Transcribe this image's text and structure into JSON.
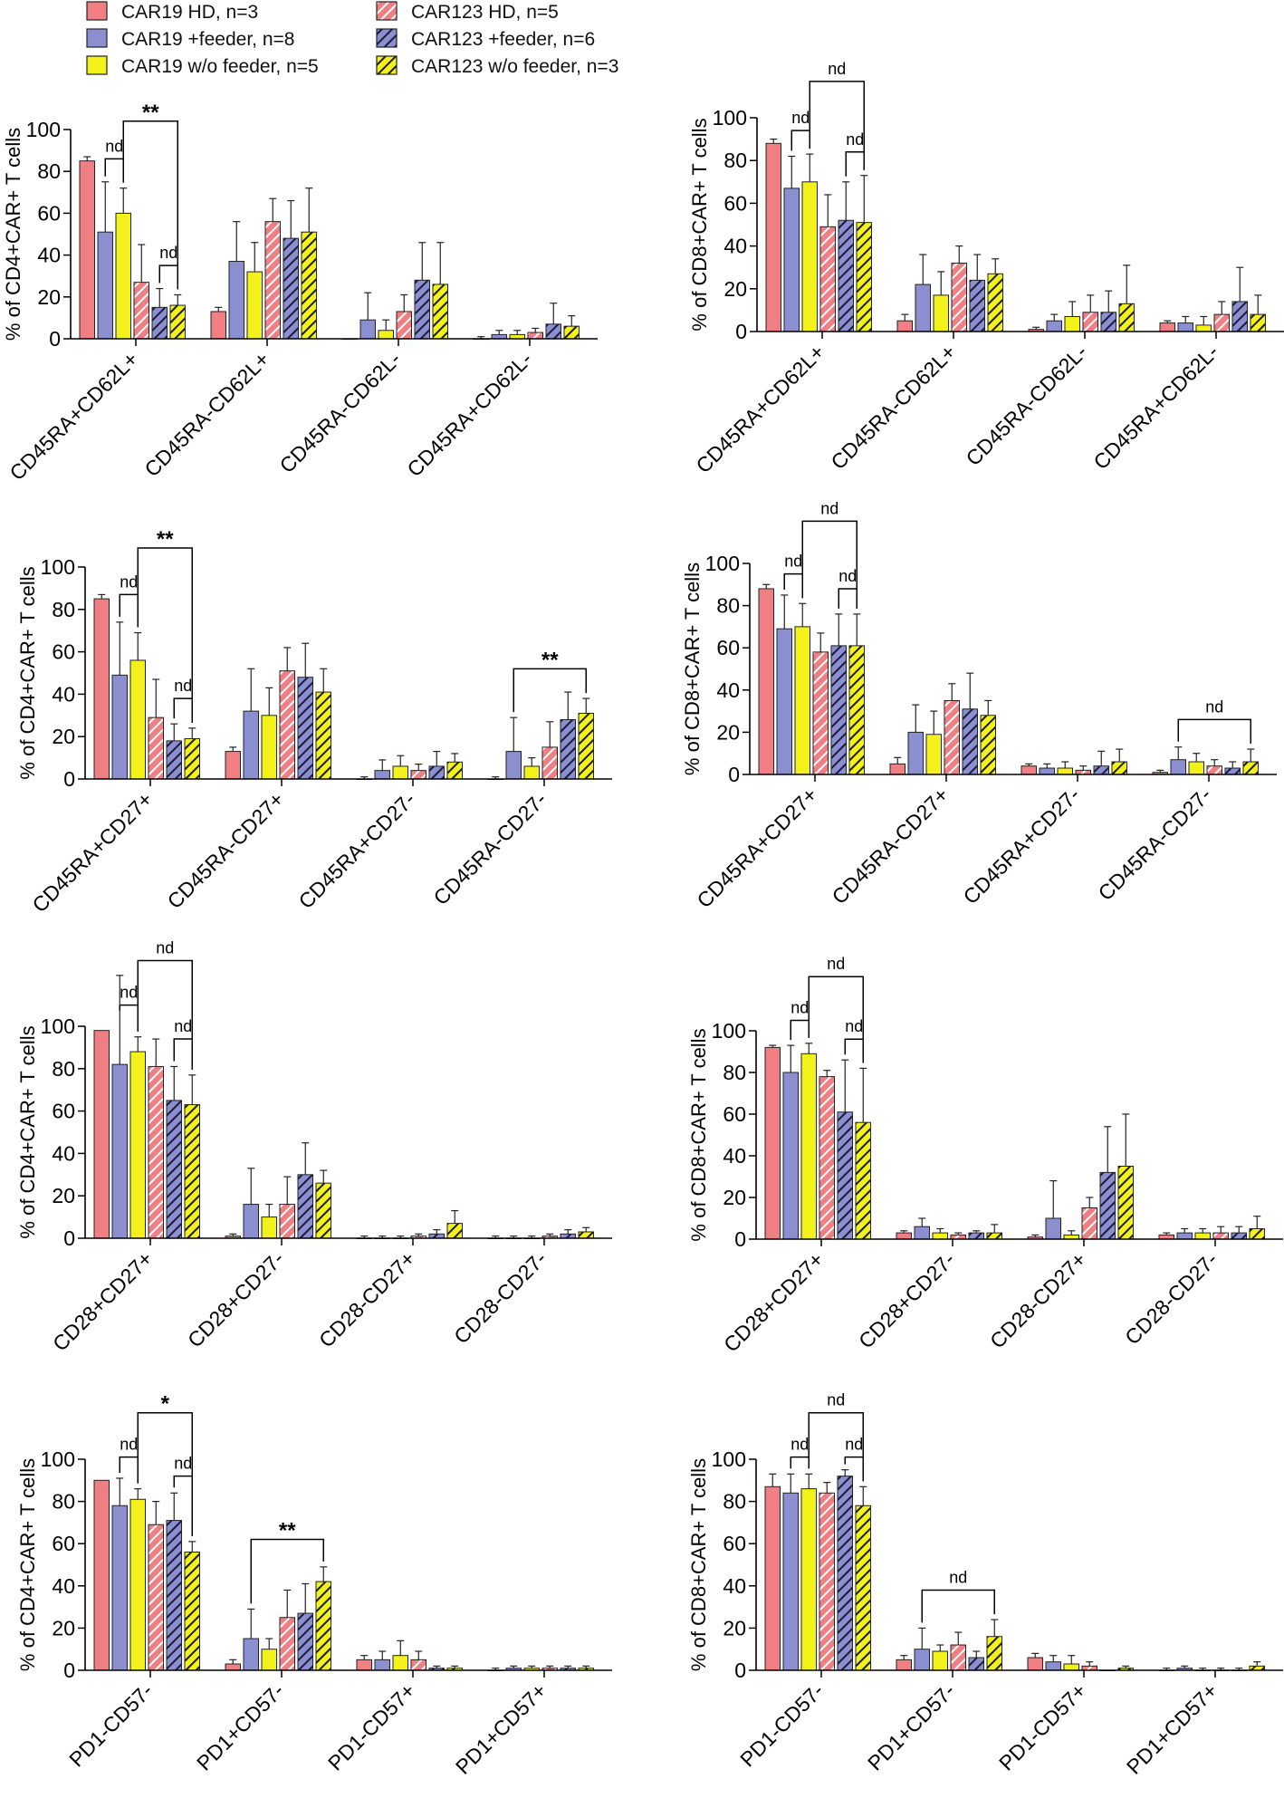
{
  "legend": [
    {
      "label": "CAR19 HD, n=3",
      "hatched": false,
      "color": "#f07f84"
    },
    {
      "label": "CAR19 +feeder, n=8",
      "hatched": false,
      "color": "#8b8fcf"
    },
    {
      "label": "CAR19 w/o feeder, n=5",
      "hatched": false,
      "color": "#f2f21a"
    },
    {
      "label": "CAR123 HD, n=5",
      "hatched": true,
      "color": "#f07f84"
    },
    {
      "label": "CAR123 +feeder, n=6",
      "hatched": true,
      "color": "#8b8fcf"
    },
    {
      "label": "CAR123 w/o feeder, n=3",
      "hatched": true,
      "color": "#f2f21a"
    }
  ],
  "chart_data": [
    {
      "type": "bar",
      "title": "",
      "ylabel": "% of CD4+CAR+ T cells",
      "ylim": [
        0,
        100
      ],
      "yticks": [
        0,
        20,
        40,
        60,
        80,
        100
      ],
      "categories": [
        "CD45RA+CD62L+",
        "CD45RA-CD62L+",
        "CD45RA-CD62L-",
        "CD45RA+CD62L-"
      ],
      "values": [
        [
          85,
          51,
          60,
          27,
          15,
          16
        ],
        [
          13,
          37,
          32,
          56,
          48,
          51
        ],
        [
          0,
          9,
          4,
          13,
          28,
          26
        ],
        [
          0,
          2,
          2,
          3,
          7,
          6
        ]
      ],
      "errors": [
        [
          2,
          24,
          12,
          18,
          9,
          5
        ],
        [
          2,
          19,
          14,
          11,
          18,
          21
        ],
        [
          0,
          13,
          5,
          8,
          18,
          20
        ],
        [
          1,
          2,
          2,
          2,
          10,
          5
        ]
      ],
      "annotations": [
        {
          "text": "nd",
          "from": [
            0,
            1
          ],
          "to": [
            0,
            2
          ],
          "y": 86
        },
        {
          "text": "**",
          "from": [
            0,
            2
          ],
          "to": [
            0,
            5
          ],
          "y": 104
        },
        {
          "text": "nd",
          "from": [
            0,
            4
          ],
          "to": [
            0,
            5
          ],
          "y": 35
        }
      ]
    },
    {
      "type": "bar",
      "title": "",
      "ylabel": "% of CD8+CAR+ T cells",
      "ylim": [
        0,
        100
      ],
      "yticks": [
        0,
        20,
        40,
        60,
        80,
        100
      ],
      "categories": [
        "CD45RA+CD62L+",
        "CD45RA-CD62L+",
        "CD45RA-CD62L-",
        "CD45RA+CD62L-"
      ],
      "values": [
        [
          88,
          67,
          70,
          49,
          52,
          51
        ],
        [
          5,
          22,
          17,
          32,
          24,
          27
        ],
        [
          1,
          5,
          7,
          9,
          9,
          13
        ],
        [
          4,
          4,
          3,
          8,
          14,
          8
        ]
      ],
      "errors": [
        [
          2,
          15,
          13,
          15,
          18,
          22
        ],
        [
          3,
          14,
          11,
          8,
          12,
          7
        ],
        [
          1,
          3,
          7,
          8,
          10,
          18
        ],
        [
          1,
          3,
          4,
          6,
          16,
          9
        ]
      ],
      "annotations": [
        {
          "text": "nd",
          "from": [
            0,
            1
          ],
          "to": [
            0,
            2
          ],
          "y": 94
        },
        {
          "text": "nd",
          "from": [
            0,
            2
          ],
          "to": [
            0,
            5
          ],
          "y": 117
        },
        {
          "text": "nd",
          "from": [
            0,
            4
          ],
          "to": [
            0,
            5
          ],
          "y": 84
        }
      ]
    },
    {
      "type": "bar",
      "title": "",
      "ylabel": "% of CD4+CAR+ T cells",
      "ylim": [
        0,
        100
      ],
      "yticks": [
        0,
        20,
        40,
        60,
        80,
        100
      ],
      "categories": [
        "CD45RA+CD27+",
        "CD45RA-CD27+",
        "CD45RA+CD27-",
        "CD45RA-CD27-"
      ],
      "values": [
        [
          85,
          49,
          56,
          29,
          18,
          19
        ],
        [
          13,
          32,
          30,
          51,
          48,
          41
        ],
        [
          0,
          4,
          6,
          4,
          6,
          8
        ],
        [
          0,
          13,
          6,
          15,
          28,
          31
        ]
      ],
      "errors": [
        [
          2,
          25,
          13,
          18,
          8,
          5
        ],
        [
          2,
          20,
          13,
          11,
          16,
          11
        ],
        [
          1,
          5,
          5,
          3,
          7,
          4
        ],
        [
          1,
          16,
          4,
          12,
          13,
          7
        ]
      ],
      "annotations": [
        {
          "text": "nd",
          "from": [
            0,
            1
          ],
          "to": [
            0,
            2
          ],
          "y": 87
        },
        {
          "text": "**",
          "from": [
            0,
            2
          ],
          "to": [
            0,
            5
          ],
          "y": 109
        },
        {
          "text": "nd",
          "from": [
            0,
            4
          ],
          "to": [
            0,
            5
          ],
          "y": 38
        },
        {
          "text": "**",
          "from": [
            3,
            1
          ],
          "to": [
            3,
            5
          ],
          "y": 52
        }
      ]
    },
    {
      "type": "bar",
      "title": "",
      "ylabel": "% of CD8+CAR+ T cells",
      "ylim": [
        0,
        100
      ],
      "yticks": [
        0,
        20,
        40,
        60,
        80,
        100
      ],
      "categories": [
        "CD45RA+CD27+",
        "CD45RA-CD27+",
        "CD45RA+CD27-",
        "CD45RA-CD27-"
      ],
      "values": [
        [
          88,
          69,
          70,
          58,
          61,
          61
        ],
        [
          5,
          20,
          19,
          35,
          31,
          28
        ],
        [
          4,
          3,
          3,
          2,
          4,
          6
        ],
        [
          1,
          7,
          6,
          4,
          3,
          6
        ]
      ],
      "errors": [
        [
          2,
          16,
          11,
          9,
          15,
          15
        ],
        [
          3,
          13,
          11,
          8,
          17,
          7
        ],
        [
          1,
          2,
          3,
          2,
          7,
          6
        ],
        [
          1,
          6,
          4,
          3,
          3,
          6
        ]
      ],
      "annotations": [
        {
          "text": "nd",
          "from": [
            0,
            1
          ],
          "to": [
            0,
            2
          ],
          "y": 95
        },
        {
          "text": "nd",
          "from": [
            0,
            2
          ],
          "to": [
            0,
            5
          ],
          "y": 120
        },
        {
          "text": "nd",
          "from": [
            0,
            4
          ],
          "to": [
            0,
            5
          ],
          "y": 88
        },
        {
          "text": "nd",
          "from": [
            3,
            1
          ],
          "to": [
            3,
            5
          ],
          "y": 26
        }
      ]
    },
    {
      "type": "bar",
      "title": "",
      "ylabel": "% of CD4+CAR+ T cells",
      "ylim": [
        0,
        100
      ],
      "yticks": [
        0,
        20,
        40,
        60,
        80,
        100
      ],
      "categories": [
        "CD28+CD27+",
        "CD28+CD27-",
        "CD28-CD27+",
        "CD28-CD27-"
      ],
      "values": [
        [
          98,
          82,
          88,
          81,
          65,
          63
        ],
        [
          1,
          16,
          10,
          16,
          30,
          26
        ],
        [
          0,
          0,
          0,
          1,
          2,
          7
        ],
        [
          0,
          0,
          0,
          1,
          2,
          3
        ]
      ],
      "errors": [
        [
          0,
          42,
          7,
          13,
          16,
          14
        ],
        [
          1,
          17,
          6,
          13,
          15,
          6
        ],
        [
          1,
          1,
          1,
          1,
          2,
          6
        ],
        [
          1,
          1,
          1,
          1,
          2,
          2
        ]
      ],
      "annotations": [
        {
          "text": "nd",
          "from": [
            0,
            1
          ],
          "to": [
            0,
            2
          ],
          "y": 110
        },
        {
          "text": "nd",
          "from": [
            0,
            2
          ],
          "to": [
            0,
            5
          ],
          "y": 131
        },
        {
          "text": "nd",
          "from": [
            0,
            4
          ],
          "to": [
            0,
            5
          ],
          "y": 94
        }
      ]
    },
    {
      "type": "bar",
      "title": "",
      "ylabel": "% of CD8+CAR+ T cells",
      "ylim": [
        0,
        100
      ],
      "yticks": [
        0,
        20,
        40,
        60,
        80,
        100
      ],
      "categories": [
        "CD28+CD27+",
        "CD28+CD27-",
        "CD28-CD27+",
        "CD28-CD27-"
      ],
      "values": [
        [
          92,
          80,
          89,
          78,
          61,
          56
        ],
        [
          3,
          6,
          3,
          2,
          3,
          3
        ],
        [
          1,
          10,
          2,
          15,
          32,
          35
        ],
        [
          2,
          3,
          3,
          3,
          3,
          5
        ]
      ],
      "errors": [
        [
          1,
          13,
          5,
          3,
          25,
          26
        ],
        [
          1,
          4,
          2,
          1,
          1,
          4
        ],
        [
          1,
          18,
          2,
          5,
          22,
          25
        ],
        [
          1,
          2,
          2,
          3,
          3,
          6
        ]
      ],
      "annotations": [
        {
          "text": "nd",
          "from": [
            0,
            1
          ],
          "to": [
            0,
            2
          ],
          "y": 105
        },
        {
          "text": "nd",
          "from": [
            0,
            2
          ],
          "to": [
            0,
            5
          ],
          "y": 126
        },
        {
          "text": "nd",
          "from": [
            0,
            4
          ],
          "to": [
            0,
            5
          ],
          "y": 96
        }
      ]
    },
    {
      "type": "bar",
      "title": "",
      "ylabel": "% of CD4+CAR+ T cells",
      "ylim": [
        0,
        100
      ],
      "yticks": [
        0,
        20,
        40,
        60,
        80,
        100
      ],
      "categories": [
        "PD1-CD57-",
        "PD1+CD57-",
        "PD1-CD57+",
        "PD1+CD57+"
      ],
      "values": [
        [
          90,
          78,
          81,
          69,
          71,
          56
        ],
        [
          3,
          15,
          10,
          25,
          27,
          42
        ],
        [
          5,
          5,
          7,
          5,
          1,
          1
        ],
        [
          0,
          1,
          1,
          1,
          1,
          1
        ]
      ],
      "errors": [
        [
          0,
          13,
          5,
          11,
          13,
          5
        ],
        [
          2,
          14,
          5,
          13,
          14,
          7
        ],
        [
          2,
          4,
          7,
          4,
          1,
          1
        ],
        [
          1,
          1,
          1,
          1,
          1,
          1
        ]
      ],
      "annotations": [
        {
          "text": "nd",
          "from": [
            0,
            1
          ],
          "to": [
            0,
            2
          ],
          "y": 101
        },
        {
          "text": "*",
          "from": [
            0,
            2
          ],
          "to": [
            0,
            5
          ],
          "y": 122
        },
        {
          "text": "nd",
          "from": [
            0,
            4
          ],
          "to": [
            0,
            5
          ],
          "y": 92
        },
        {
          "text": "**",
          "from": [
            1,
            1
          ],
          "to": [
            1,
            5
          ],
          "y": 62
        }
      ]
    },
    {
      "type": "bar",
      "title": "",
      "ylabel": "% of CD8+CAR+ T cells",
      "ylim": [
        0,
        100
      ],
      "yticks": [
        0,
        20,
        40,
        60,
        80,
        100
      ],
      "categories": [
        "PD1-CD57-",
        "PD1+CD57-",
        "PD1-CD57+",
        "PD1+CD57+"
      ],
      "values": [
        [
          87,
          84,
          86,
          84,
          92,
          78
        ],
        [
          5,
          10,
          9,
          12,
          6,
          16
        ],
        [
          6,
          4,
          3,
          2,
          0,
          1
        ],
        [
          0,
          1,
          0,
          0,
          0,
          2
        ]
      ],
      "errors": [
        [
          6,
          9,
          7,
          5,
          3,
          9
        ],
        [
          2,
          10,
          3,
          6,
          3,
          8
        ],
        [
          2,
          3,
          4,
          2,
          0,
          1
        ],
        [
          1,
          1,
          1,
          1,
          1,
          2
        ]
      ],
      "annotations": [
        {
          "text": "nd",
          "from": [
            0,
            1
          ],
          "to": [
            0,
            2
          ],
          "y": 101
        },
        {
          "text": "nd",
          "from": [
            0,
            2
          ],
          "to": [
            0,
            5
          ],
          "y": 122
        },
        {
          "text": "nd",
          "from": [
            0,
            4
          ],
          "to": [
            0,
            5
          ],
          "y": 101
        },
        {
          "text": "nd",
          "from": [
            1,
            1
          ],
          "to": [
            1,
            5
          ],
          "y": 38
        }
      ]
    }
  ]
}
